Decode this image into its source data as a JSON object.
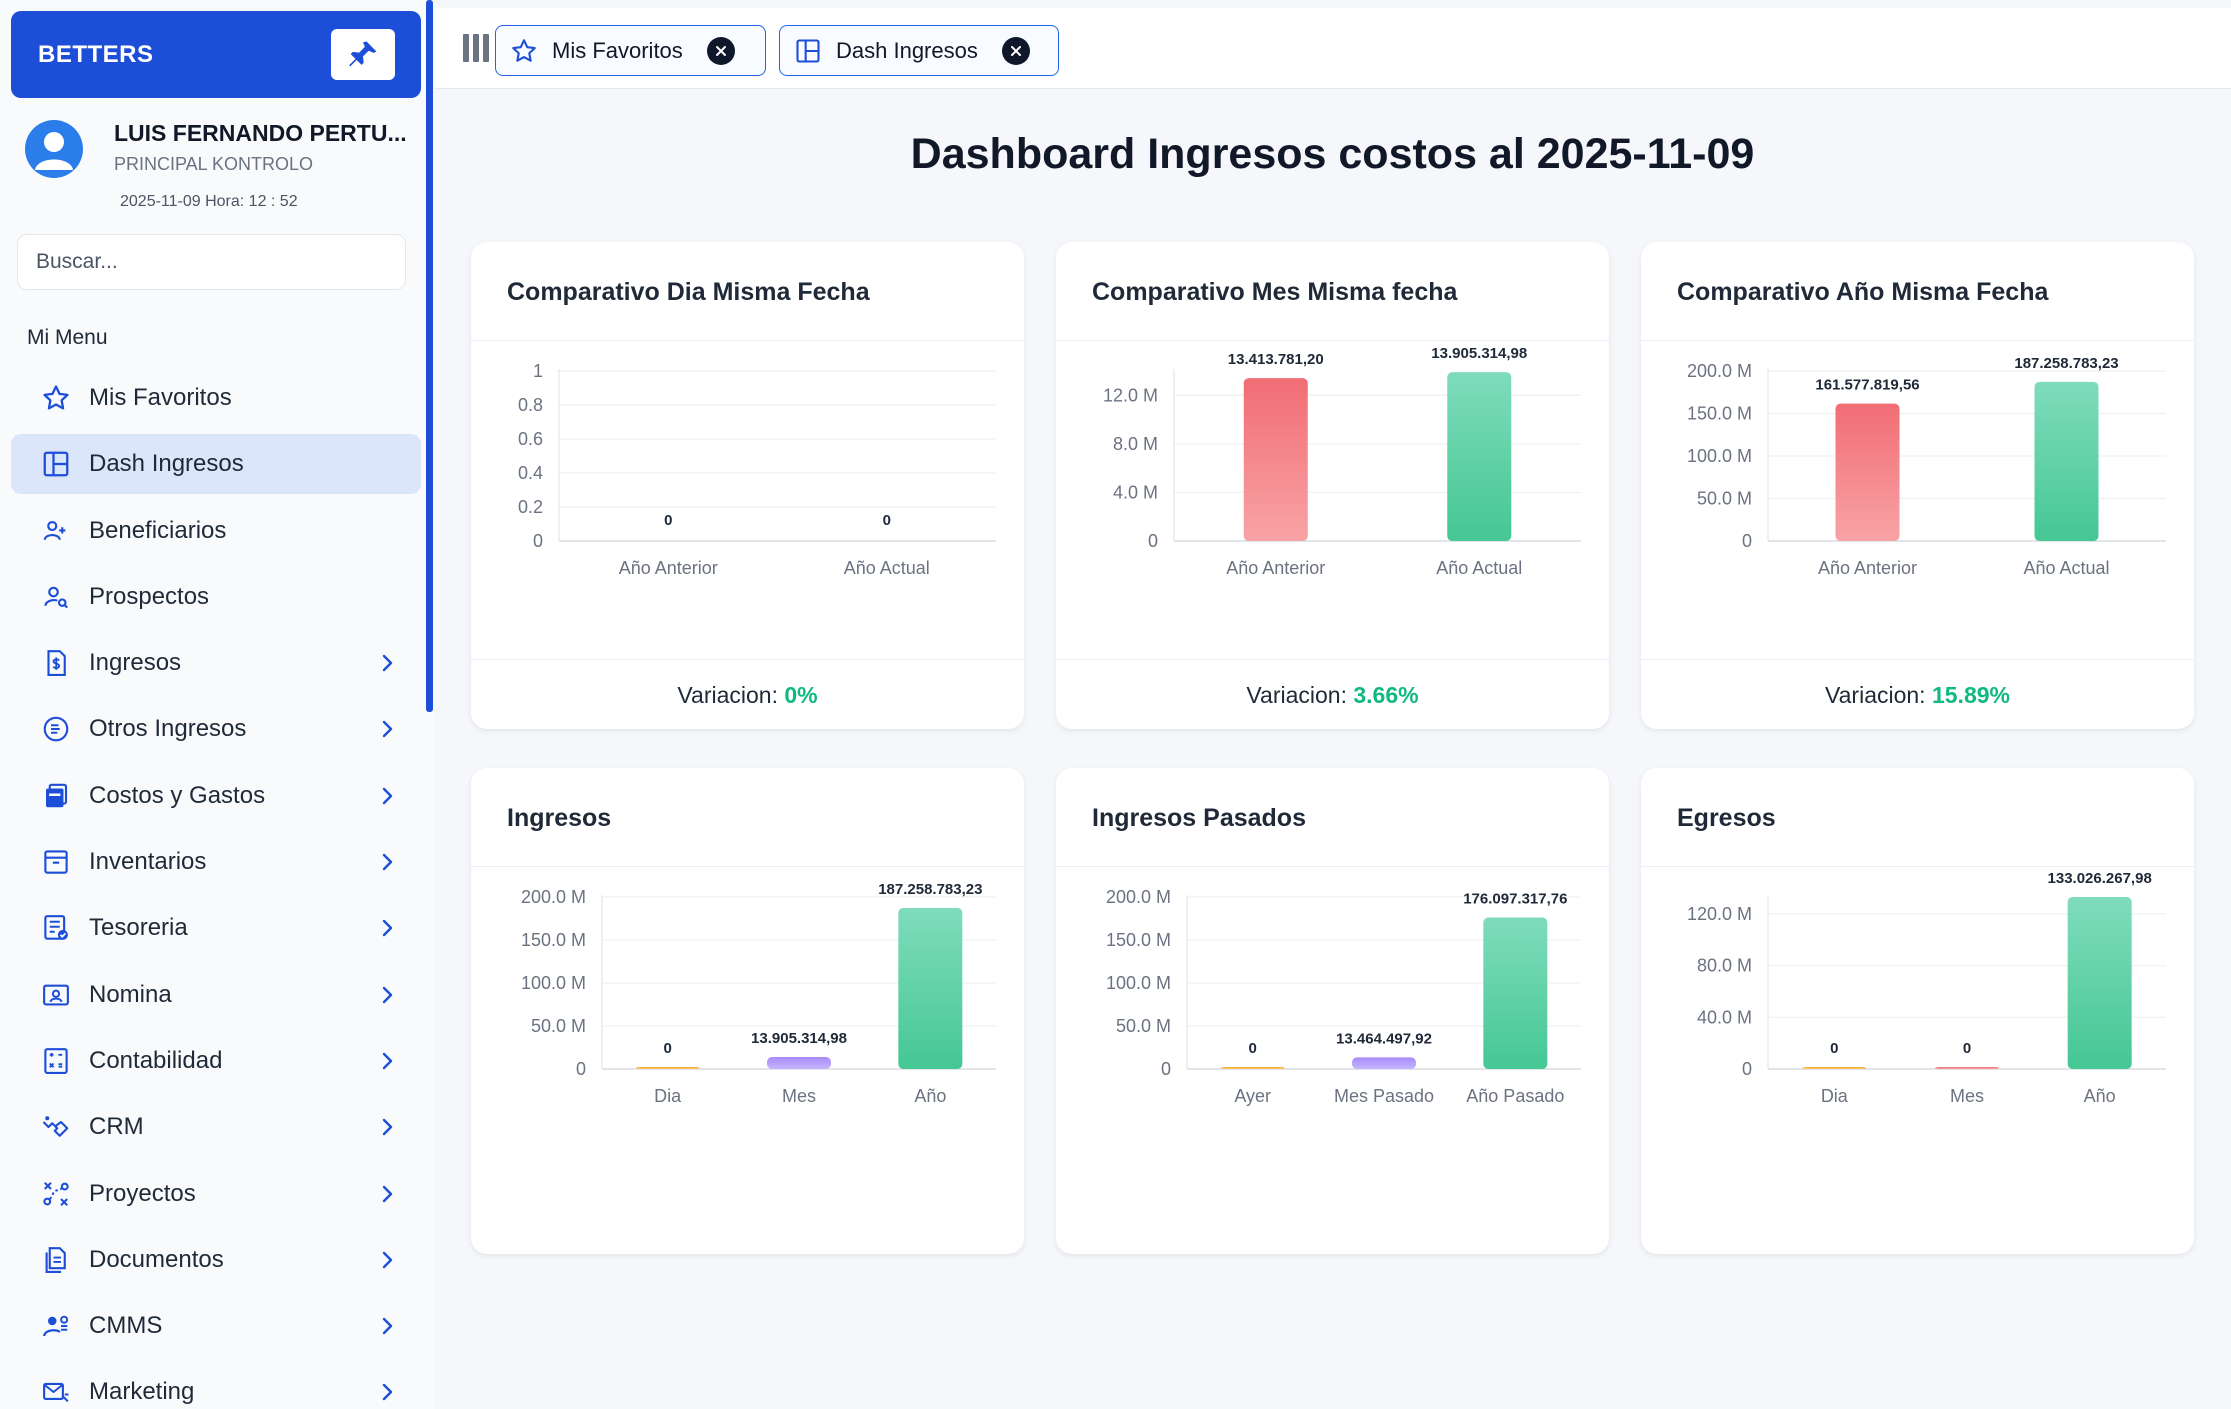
{
  "brand": {
    "name": "BETTERS"
  },
  "user": {
    "name": "LUIS FERNANDO PERTU...",
    "role": "PRINCIPAL KONTROLO",
    "datetime": "2025-11-09 Hora: 12 : 52"
  },
  "search": {
    "placeholder": "Buscar..."
  },
  "menu": {
    "title": "Mi Menu",
    "items": [
      {
        "label": "Mis Favoritos",
        "icon": "star-icon",
        "chevron": false
      },
      {
        "label": "Dash Ingresos",
        "icon": "dashboard-icon",
        "chevron": false,
        "active": true
      },
      {
        "label": "Beneficiarios",
        "icon": "users-icon",
        "chevron": false
      },
      {
        "label": "Prospectos",
        "icon": "user-search-icon",
        "chevron": false
      },
      {
        "label": "Ingresos",
        "icon": "invoice-dollar-icon",
        "chevron": true
      },
      {
        "label": "Otros Ingresos",
        "icon": "coin-icon",
        "chevron": true
      },
      {
        "label": "Costos y Gastos",
        "icon": "wallet-icon",
        "chevron": true
      },
      {
        "label": "Inventarios",
        "icon": "archive-icon",
        "chevron": true
      },
      {
        "label": "Tesoreria",
        "icon": "ledger-icon",
        "chevron": true
      },
      {
        "label": "Nomina",
        "icon": "id-card-icon",
        "chevron": true
      },
      {
        "label": "Contabilidad",
        "icon": "calculator-icon",
        "chevron": true
      },
      {
        "label": "CRM",
        "icon": "handshake-icon",
        "chevron": true
      },
      {
        "label": "Proyectos",
        "icon": "route-icon",
        "chevron": true
      },
      {
        "label": "Documentos",
        "icon": "document-icon",
        "chevron": true
      },
      {
        "label": "CMMS",
        "icon": "maintenance-icon",
        "chevron": true
      },
      {
        "label": "Marketing",
        "icon": "mail-icon",
        "chevron": true
      }
    ]
  },
  "tabs": [
    {
      "label": "Mis Favoritos",
      "icon": "star-icon"
    },
    {
      "label": "Dash Ingresos",
      "icon": "dashboard-icon"
    }
  ],
  "page": {
    "title": "Dashboard Ingresos costos al 2025-11-09"
  },
  "colors": {
    "primary": "#1d4ed8",
    "red_bar": "#f47a7f",
    "green_bar": "#4fcf9f",
    "purple_bar": "#a78bfa",
    "positive": "#10b981"
  },
  "cards": [
    {
      "title": "Comparativo Dia Misma Fecha",
      "variation_label": "Variacion: ",
      "variation_value": "0%"
    },
    {
      "title": "Comparativo Mes Misma fecha",
      "variation_label": "Variacion: ",
      "variation_value": "3.66%"
    },
    {
      "title": "Comparativo Año Misma Fecha",
      "variation_label": "Variacion: ",
      "variation_value": "15.89%"
    },
    {
      "title": "Ingresos"
    },
    {
      "title": "Ingresos Pasados"
    },
    {
      "title": "Egresos"
    }
  ],
  "chart_data": [
    {
      "type": "bar",
      "categories": [
        "Año Anterior",
        "Año Actual"
      ],
      "values": [
        0,
        0
      ],
      "value_labels": [
        "0",
        "0"
      ],
      "ylim": [
        0,
        1
      ],
      "yticks": [
        0,
        0.2,
        0.4,
        0.6,
        0.8,
        1
      ],
      "ytick_labels": [
        "0",
        "0.2",
        "0.4",
        "0.6",
        "0.8",
        "1"
      ],
      "bar_colors": [
        "red",
        "green"
      ],
      "grid": true
    },
    {
      "type": "bar",
      "categories": [
        "Año Anterior",
        "Año Actual"
      ],
      "values": [
        13413781.2,
        13905314.98
      ],
      "value_labels": [
        "13.413.781,20",
        "13.905.314,98"
      ],
      "ylim": [
        0,
        14000000
      ],
      "yticks": [
        0,
        4000000,
        8000000,
        12000000
      ],
      "ytick_labels": [
        "0",
        "4.0 M",
        "8.0 M",
        "12.0 M"
      ],
      "bar_colors": [
        "red",
        "green"
      ],
      "grid": true
    },
    {
      "type": "bar",
      "categories": [
        "Año Anterior",
        "Año Actual"
      ],
      "values": [
        161577819.56,
        187258783.23
      ],
      "value_labels": [
        "161.577.819,56",
        "187.258.783,23"
      ],
      "ylim": [
        0,
        200000000
      ],
      "yticks": [
        0,
        50000000,
        100000000,
        150000000,
        200000000
      ],
      "ytick_labels": [
        "0",
        "50.0 M",
        "100.0 M",
        "150.0 M",
        "200.0 M"
      ],
      "bar_colors": [
        "red",
        "green"
      ],
      "grid": true
    },
    {
      "type": "bar",
      "categories": [
        "Dia",
        "Mes",
        "Año"
      ],
      "values": [
        0,
        13905314.98,
        187258783.23
      ],
      "value_labels": [
        "0",
        "13.905.314,98",
        "187.258.783,23"
      ],
      "ylim": [
        0,
        200000000
      ],
      "yticks": [
        0,
        50000000,
        100000000,
        150000000,
        200000000
      ],
      "ytick_labels": [
        "0",
        "50.0 M",
        "100.0 M",
        "150.0 M",
        "200.0 M"
      ],
      "bar_colors": [
        "orange",
        "purple",
        "green"
      ],
      "grid": true
    },
    {
      "type": "bar",
      "categories": [
        "Ayer",
        "Mes Pasado",
        "Año Pasado"
      ],
      "values": [
        0,
        13464497.92,
        176097317.76
      ],
      "value_labels": [
        "0",
        "13.464.497,92",
        "176.097.317,76"
      ],
      "ylim": [
        0,
        200000000
      ],
      "yticks": [
        0,
        50000000,
        100000000,
        150000000,
        200000000
      ],
      "ytick_labels": [
        "0",
        "50.0 M",
        "100.0 M",
        "150.0 M",
        "200.0 M"
      ],
      "bar_colors": [
        "orange",
        "purple",
        "green"
      ],
      "grid": true
    },
    {
      "type": "bar",
      "categories": [
        "Dia",
        "Mes",
        "Año"
      ],
      "values": [
        0,
        0,
        133026267.98
      ],
      "value_labels": [
        "0",
        "0",
        "133.026.267,98"
      ],
      "ylim": [
        0,
        133026267.98
      ],
      "yticks": [
        0,
        40000000,
        80000000,
        120000000
      ],
      "ytick_labels": [
        "0",
        "40.0 M",
        "80.0 M",
        "120.0 M"
      ],
      "bar_colors": [
        "orange",
        "red",
        "green"
      ],
      "grid": true
    }
  ]
}
